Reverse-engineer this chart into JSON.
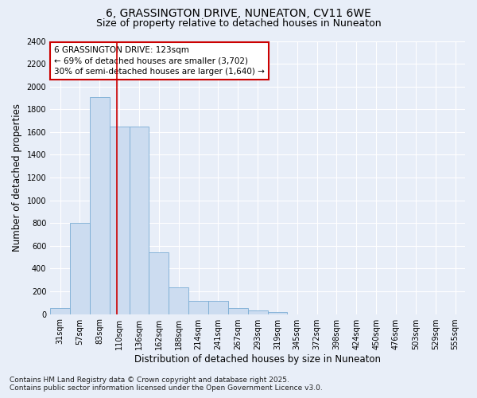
{
  "title_line1": "6, GRASSINGTON DRIVE, NUNEATON, CV11 6WE",
  "title_line2": "Size of property relative to detached houses in Nuneaton",
  "xlabel": "Distribution of detached houses by size in Nuneaton",
  "ylabel": "Number of detached properties",
  "categories": [
    "31sqm",
    "57sqm",
    "83sqm",
    "110sqm",
    "136sqm",
    "162sqm",
    "188sqm",
    "214sqm",
    "241sqm",
    "267sqm",
    "293sqm",
    "319sqm",
    "345sqm",
    "372sqm",
    "398sqm",
    "424sqm",
    "450sqm",
    "476sqm",
    "503sqm",
    "529sqm",
    "555sqm"
  ],
  "values": [
    55,
    800,
    1910,
    1650,
    1650,
    540,
    235,
    115,
    115,
    55,
    30,
    15,
    0,
    0,
    0,
    0,
    0,
    0,
    0,
    0,
    0
  ],
  "bar_color": "#ccdcf0",
  "bar_edge_color": "#7aadd4",
  "annotation_line1": "6 GRASSINGTON DRIVE: 123sqm",
  "annotation_line2": "← 69% of detached houses are smaller (3,702)",
  "annotation_line3": "30% of semi-detached houses are larger (1,640) →",
  "annotation_box_color": "#cc0000",
  "vline_x_index": 2.88,
  "vline_color": "#cc0000",
  "ylim": [
    0,
    2400
  ],
  "yticks": [
    0,
    200,
    400,
    600,
    800,
    1000,
    1200,
    1400,
    1600,
    1800,
    2000,
    2200,
    2400
  ],
  "background_color": "#e8eef8",
  "plot_bg_color": "#e8eef8",
  "grid_color": "#ffffff",
  "footer_line1": "Contains HM Land Registry data © Crown copyright and database right 2025.",
  "footer_line2": "Contains public sector information licensed under the Open Government Licence v3.0.",
  "title_fontsize": 10,
  "subtitle_fontsize": 9,
  "axis_label_fontsize": 8.5,
  "tick_fontsize": 7,
  "annotation_fontsize": 7.5,
  "footer_fontsize": 6.5
}
